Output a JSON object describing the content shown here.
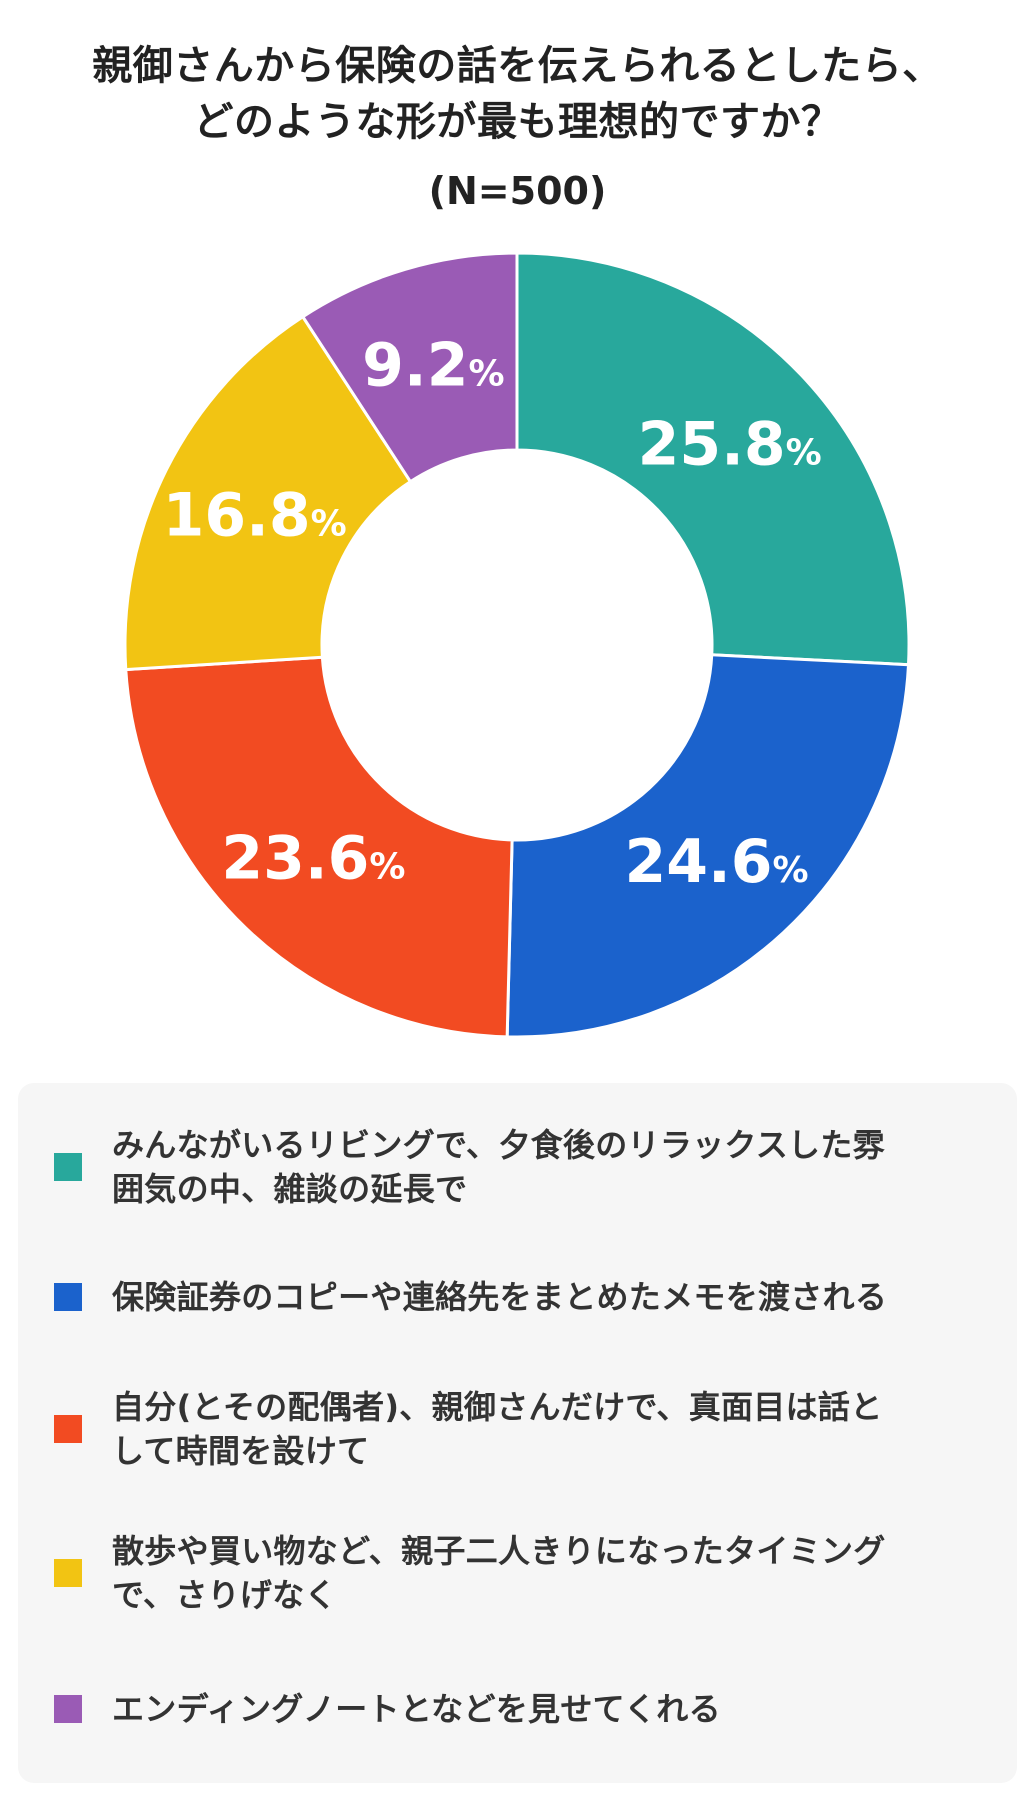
{
  "title_lines": [
    "親御さんから保険の話を伝えられるとしたら、",
    "どのような形が最も理想的ですか？"
  ],
  "subtitle": "(N=500)",
  "chart_data": {
    "type": "pie",
    "donut": true,
    "title": "親御さんから保険の話を伝えられるとしたら、どのような形が最も理想的ですか？",
    "subtitle": "(N=500)",
    "value_unit": "%",
    "start_angle": "12 o'clock",
    "direction": "clockwise",
    "legend_position": "bottom",
    "slices": [
      {
        "label": "みんながいるリビングで、夕食後のリラックスした雰囲気の中、雑談の延長で",
        "value": 25.8,
        "display_number": "25.8",
        "color": "#28a89c"
      },
      {
        "label": "保険証券のコピーや連絡先をまとめたメモを渡される",
        "value": 24.6,
        "display_number": "24.6",
        "color": "#1b62cc"
      },
      {
        "label": "自分(とその配偶者)、親御さんだけで、真面目は話として時間を設けて",
        "value": 23.6,
        "display_number": "23.6",
        "color": "#f24b22"
      },
      {
        "label": "散歩や買い物など、親子二人きりになったタイミングで、さりげなく",
        "value": 16.8,
        "display_number": "16.8",
        "color": "#f2c413"
      },
      {
        "label": "エンディングノートとなどを見せてくれる",
        "value": 9.2,
        "display_number": "9.2",
        "color": "#9a5bb5"
      }
    ]
  },
  "legend": {
    "items": [
      {
        "lines": [
          "みんながいるリビングで、夕食後のリラックスした雰",
          "囲気の中、雑談の延長で"
        ]
      },
      {
        "lines": [
          "保険証券のコピーや連絡先をまとめたメモを渡される"
        ]
      },
      {
        "lines": [
          "自分(とその配偶者)、親御さんだけで、真面目は話と",
          "して時間を設けて"
        ]
      },
      {
        "lines": [
          "散歩や買い物など、親子二人きりになったタイミング",
          "で、さりげなく"
        ]
      },
      {
        "lines": [
          "エンディングノートとなどを見せてくれる"
        ]
      }
    ]
  }
}
